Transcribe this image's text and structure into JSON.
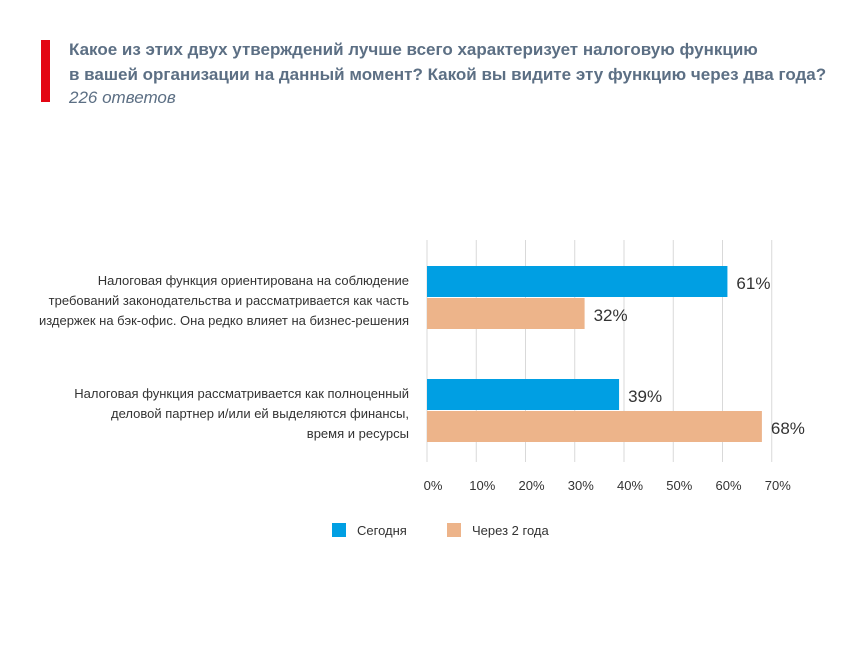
{
  "header": {
    "title_line1": "Какое из этих двух утверждений лучше всего характеризует налоговую функцию",
    "title_line2": "в вашей организации на данный момент? Какой вы видите эту функцию через два года?",
    "subtitle": "226 ответов",
    "accent_color": "#e30613"
  },
  "chart_data": {
    "type": "bar",
    "orientation": "horizontal",
    "categories": [
      [
        "Налоговая функция ориентирована на соблюдение",
        "требований законодательства и рассматривается как часть",
        "издержек на бэк-офис. Она редко влияет на бизнес-решения"
      ],
      [
        "Налоговая функция рассматривается как полноценный",
        "деловой партнер и/или ей выделяются финансы,",
        "время и ресурсы"
      ]
    ],
    "series": [
      {
        "name": "Сегодня",
        "values": [
          61,
          39
        ],
        "labels": [
          "61%",
          "39%"
        ],
        "color": "#009fe3"
      },
      {
        "name": "Через 2 года",
        "values": [
          32,
          68
        ],
        "labels": [
          "32%",
          "68%"
        ],
        "color": "#edb48a"
      }
    ],
    "xlim": [
      0,
      70
    ],
    "xticks": [
      "0%",
      "10%",
      "20%",
      "30%",
      "40%",
      "50%",
      "60%",
      "70%"
    ],
    "grid": true,
    "legend_position": "bottom"
  }
}
